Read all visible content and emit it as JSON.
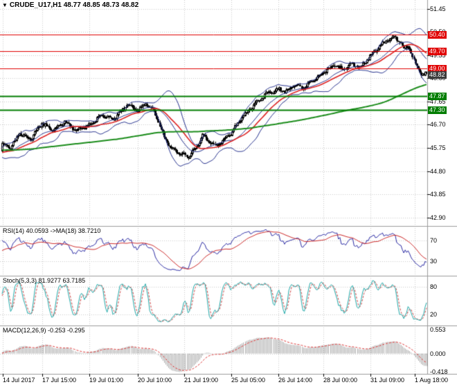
{
  "icons": {
    "chart_menu": "▼"
  },
  "titlebar": {
    "symbol": "CRUDE_U17,H1",
    "ohlc": "48.77 48.85 48.73 48.82"
  },
  "colors": {
    "bg": "#ffffff",
    "grid": "#c9c9c9",
    "candle": "#000000",
    "bollinger": "#222e8c",
    "ma_fast": "#dd2222",
    "ma_slow": "#1a8c1a",
    "level_red": "#e00000",
    "level_green": "#007d00",
    "rsi": "#2929a3",
    "rsi_ma": "#cc2222",
    "stoch_k": "#1fa8a8",
    "stoch_d": "#cc4444",
    "macd_hist": "#aaaaaa",
    "macd_signal": "#dd3333",
    "panel_border": "#9b9b9b",
    "axis_text": "#000000"
  },
  "chart_data": {
    "type": "candlestick",
    "symbol": "CRUDE_U17",
    "timeframe": "H1",
    "last_ohlc": {
      "open": 48.77,
      "high": 48.85,
      "low": 48.73,
      "close": 48.82
    },
    "bars_visible": 300,
    "price_axis": {
      "labels": [
        "51.45",
        "50.50",
        "49.55",
        "48.60",
        "47.65",
        "46.70",
        "45.75",
        "44.80",
        "43.85",
        "42.90"
      ],
      "max": 51.75,
      "min": 42.55
    },
    "levels": [
      {
        "value": 50.4,
        "label": "50.40",
        "color": "red"
      },
      {
        "value": 49.7,
        "label": "49.70",
        "color": "red"
      },
      {
        "value": 49.0,
        "label": "49.00",
        "color": "red"
      },
      {
        "value": 47.87,
        "label": "47.87",
        "color": "green"
      },
      {
        "value": 47.3,
        "label": "47.30",
        "color": "green"
      }
    ],
    "current_price": {
      "value": 48.82,
      "label": "48.82"
    },
    "time_ticks": [
      {
        "label": "14 Jul 2017",
        "bar": 1
      },
      {
        "label": "17 Jul 15:00",
        "bar": 29
      },
      {
        "label": "19 Jul 01:00",
        "bar": 62
      },
      {
        "label": "20 Jul 10:00",
        "bar": 96
      },
      {
        "label": "21 Jul 19:00",
        "bar": 129
      },
      {
        "label": "25 Jul 05:00",
        "bar": 162
      },
      {
        "label": "26 Jul 14:00",
        "bar": 195
      },
      {
        "label": "28 Jul 00:00",
        "bar": 227
      },
      {
        "label": "31 Jul 09:00",
        "bar": 260
      },
      {
        "label": "1 Aug 18:00",
        "bar": 291
      }
    ],
    "price_path": [
      [
        0,
        45.95
      ],
      [
        6,
        45.72
      ],
      [
        12,
        46.35
      ],
      [
        20,
        46.1
      ],
      [
        28,
        46.75
      ],
      [
        36,
        46.45
      ],
      [
        44,
        46.85
      ],
      [
        52,
        46.45
      ],
      [
        62,
        46.7
      ],
      [
        70,
        47.1
      ],
      [
        78,
        46.9
      ],
      [
        88,
        47.5
      ],
      [
        95,
        47.3
      ],
      [
        101,
        47.55
      ],
      [
        107,
        47.25
      ],
      [
        113,
        46.3
      ],
      [
        119,
        45.75
      ],
      [
        125,
        45.5
      ],
      [
        131,
        45.42
      ],
      [
        137,
        45.8
      ],
      [
        141,
        46.25
      ],
      [
        146,
        46.0
      ],
      [
        151,
        45.85
      ],
      [
        156,
        46.1
      ],
      [
        162,
        46.4
      ],
      [
        168,
        46.95
      ],
      [
        174,
        47.3
      ],
      [
        180,
        47.65
      ],
      [
        186,
        47.95
      ],
      [
        195,
        48.15
      ],
      [
        200,
        48.05
      ],
      [
        206,
        48.35
      ],
      [
        212,
        48.2
      ],
      [
        218,
        48.5
      ],
      [
        227,
        48.85
      ],
      [
        234,
        49.15
      ],
      [
        240,
        48.95
      ],
      [
        246,
        49.2
      ],
      [
        252,
        49.05
      ],
      [
        260,
        49.55
      ],
      [
        266,
        49.9
      ],
      [
        271,
        50.15
      ],
      [
        276,
        50.28
      ],
      [
        280,
        50.1
      ],
      [
        283,
        49.8
      ],
      [
        286,
        49.95
      ],
      [
        290,
        49.3
      ],
      [
        294,
        48.85
      ],
      [
        297,
        48.7
      ],
      [
        299,
        48.82
      ]
    ],
    "indicators": {
      "rsi": {
        "label": "RSI(14) 40.0593  ->MA(18) 38.7210",
        "period": 14,
        "ma_period": 18,
        "value": 40.0593,
        "ma_value": 38.721,
        "levels": [
          "70",
          "30"
        ],
        "level_values": [
          70,
          30
        ]
      },
      "stoch": {
        "label": "Stoch(5,3,3) 81.9277 63.7185",
        "k": 5,
        "d": 3,
        "slowing": 3,
        "value": 81.9277,
        "signal_value": 63.7185,
        "levels": [
          "80",
          "20"
        ],
        "level_values": [
          80,
          20
        ]
      },
      "macd": {
        "label": "MACD(12,26,9) -0.253 -0.295",
        "fast": 12,
        "slow": 26,
        "signal": 9,
        "value": -0.253,
        "signal_value": -0.295,
        "axis_labels": [
          "0.553",
          "0.000",
          "-0.418"
        ],
        "axis_values": [
          0.553,
          0,
          -0.418
        ]
      }
    }
  }
}
